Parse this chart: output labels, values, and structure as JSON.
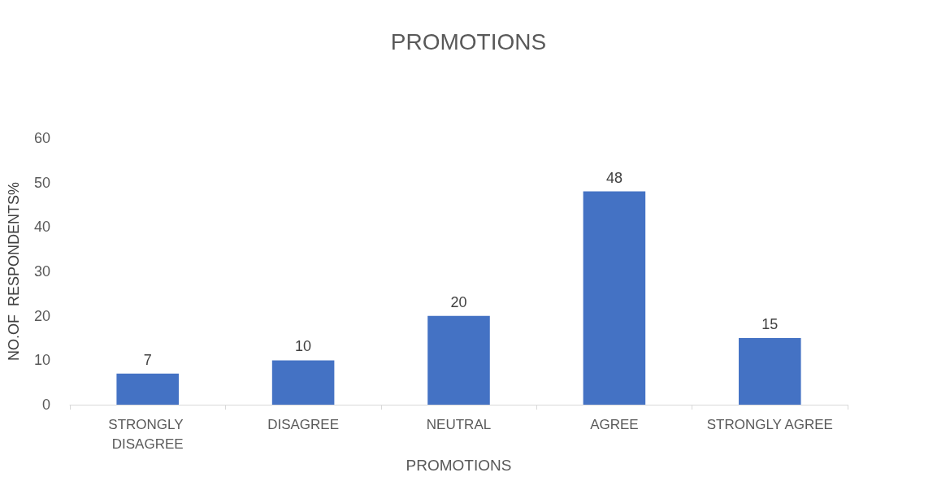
{
  "chart_data": {
    "type": "bar",
    "title": "PROMOTIONS",
    "xlabel": "PROMOTIONS",
    "ylabel": "NO.OF  RESPONDENTS%",
    "categories": [
      "STRONGLY DISAGREE",
      "DISAGREE",
      "NEUTRAL",
      "AGREE",
      "STRONGLY AGREE"
    ],
    "values": [
      7,
      10,
      20,
      48,
      15
    ],
    "color": "#4472c4",
    "ylim": [
      0,
      60
    ],
    "yticks": [
      0,
      10,
      20,
      30,
      40,
      50,
      60
    ],
    "grid": false,
    "data_labels": true
  }
}
